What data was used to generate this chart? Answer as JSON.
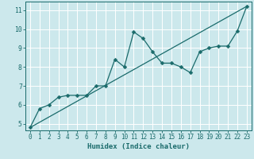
{
  "xlabel": "Humidex (Indice chaleur)",
  "bg_color": "#cce8ec",
  "grid_color": "#ffffff",
  "line_color": "#1a6b6b",
  "xlim": [
    -0.5,
    23.5
  ],
  "ylim": [
    4.65,
    11.45
  ],
  "xticks": [
    0,
    1,
    2,
    3,
    4,
    5,
    6,
    7,
    8,
    9,
    10,
    11,
    12,
    13,
    14,
    15,
    16,
    17,
    18,
    19,
    20,
    21,
    22,
    23
  ],
  "yticks": [
    5,
    6,
    7,
    8,
    9,
    10,
    11
  ],
  "data_x": [
    0,
    1,
    2,
    3,
    4,
    5,
    6,
    7,
    8,
    9,
    10,
    11,
    12,
    13,
    14,
    15,
    16,
    17,
    18,
    19,
    20,
    21,
    22,
    23
  ],
  "data_y": [
    4.8,
    5.8,
    6.0,
    6.4,
    6.5,
    6.5,
    6.5,
    7.0,
    7.0,
    8.4,
    8.0,
    9.85,
    9.5,
    8.8,
    8.2,
    8.2,
    8.0,
    7.7,
    8.8,
    9.0,
    9.1,
    9.1,
    9.9,
    11.2
  ],
  "trend_x": [
    0,
    23
  ],
  "trend_y": [
    4.8,
    11.2
  ],
  "marker_size": 2.5,
  "linewidth": 0.9,
  "xlabel_fontsize": 6.5,
  "tick_fontsize": 5.5
}
